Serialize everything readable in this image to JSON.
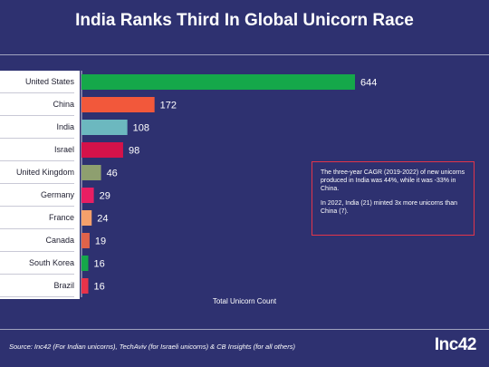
{
  "header": {
    "title": "India Ranks Third In Global Unicorn Race"
  },
  "chart_data": {
    "type": "bar",
    "orientation": "horizontal",
    "categories": [
      "United States",
      "China",
      "India",
      "Israel",
      "United Kingdom",
      "Germany",
      "France",
      "Canada",
      "South Korea",
      "Brazil"
    ],
    "values": [
      644,
      172,
      108,
      98,
      46,
      29,
      24,
      19,
      16,
      16
    ],
    "value_labels": [
      "644",
      "172",
      "108",
      "98",
      "46",
      "29",
      "24",
      "19",
      "16",
      "16"
    ],
    "colors": [
      "#15a84a",
      "#f2583b",
      "#6cb8bf",
      "#d4124a",
      "#8e9f6f",
      "#e91e63",
      "#f5a06b",
      "#e0634a",
      "#15a84a",
      "#e8334a"
    ],
    "title": "India Ranks Third In Global Unicorn Race",
    "xlabel": "Total Unicorn Count",
    "ylabel": "",
    "xlim": [
      0,
      644
    ],
    "grid": false
  },
  "note": {
    "paragraph1": "The three-year CAGR (2019-2022) of new unicorns produced in India was 44%, while it was -33% in China.",
    "paragraph2": "In 2022, India (21) minted 3x more unicorns than China (7)."
  },
  "footer": {
    "source": "Source: Inc42 (For Indian unicorns), TechAviv (for Israeli unicorns) & CB Insights (for all others)",
    "logo": "Inc42"
  },
  "colors": {
    "background": "#2e3170",
    "note_border": "#e2354a"
  }
}
